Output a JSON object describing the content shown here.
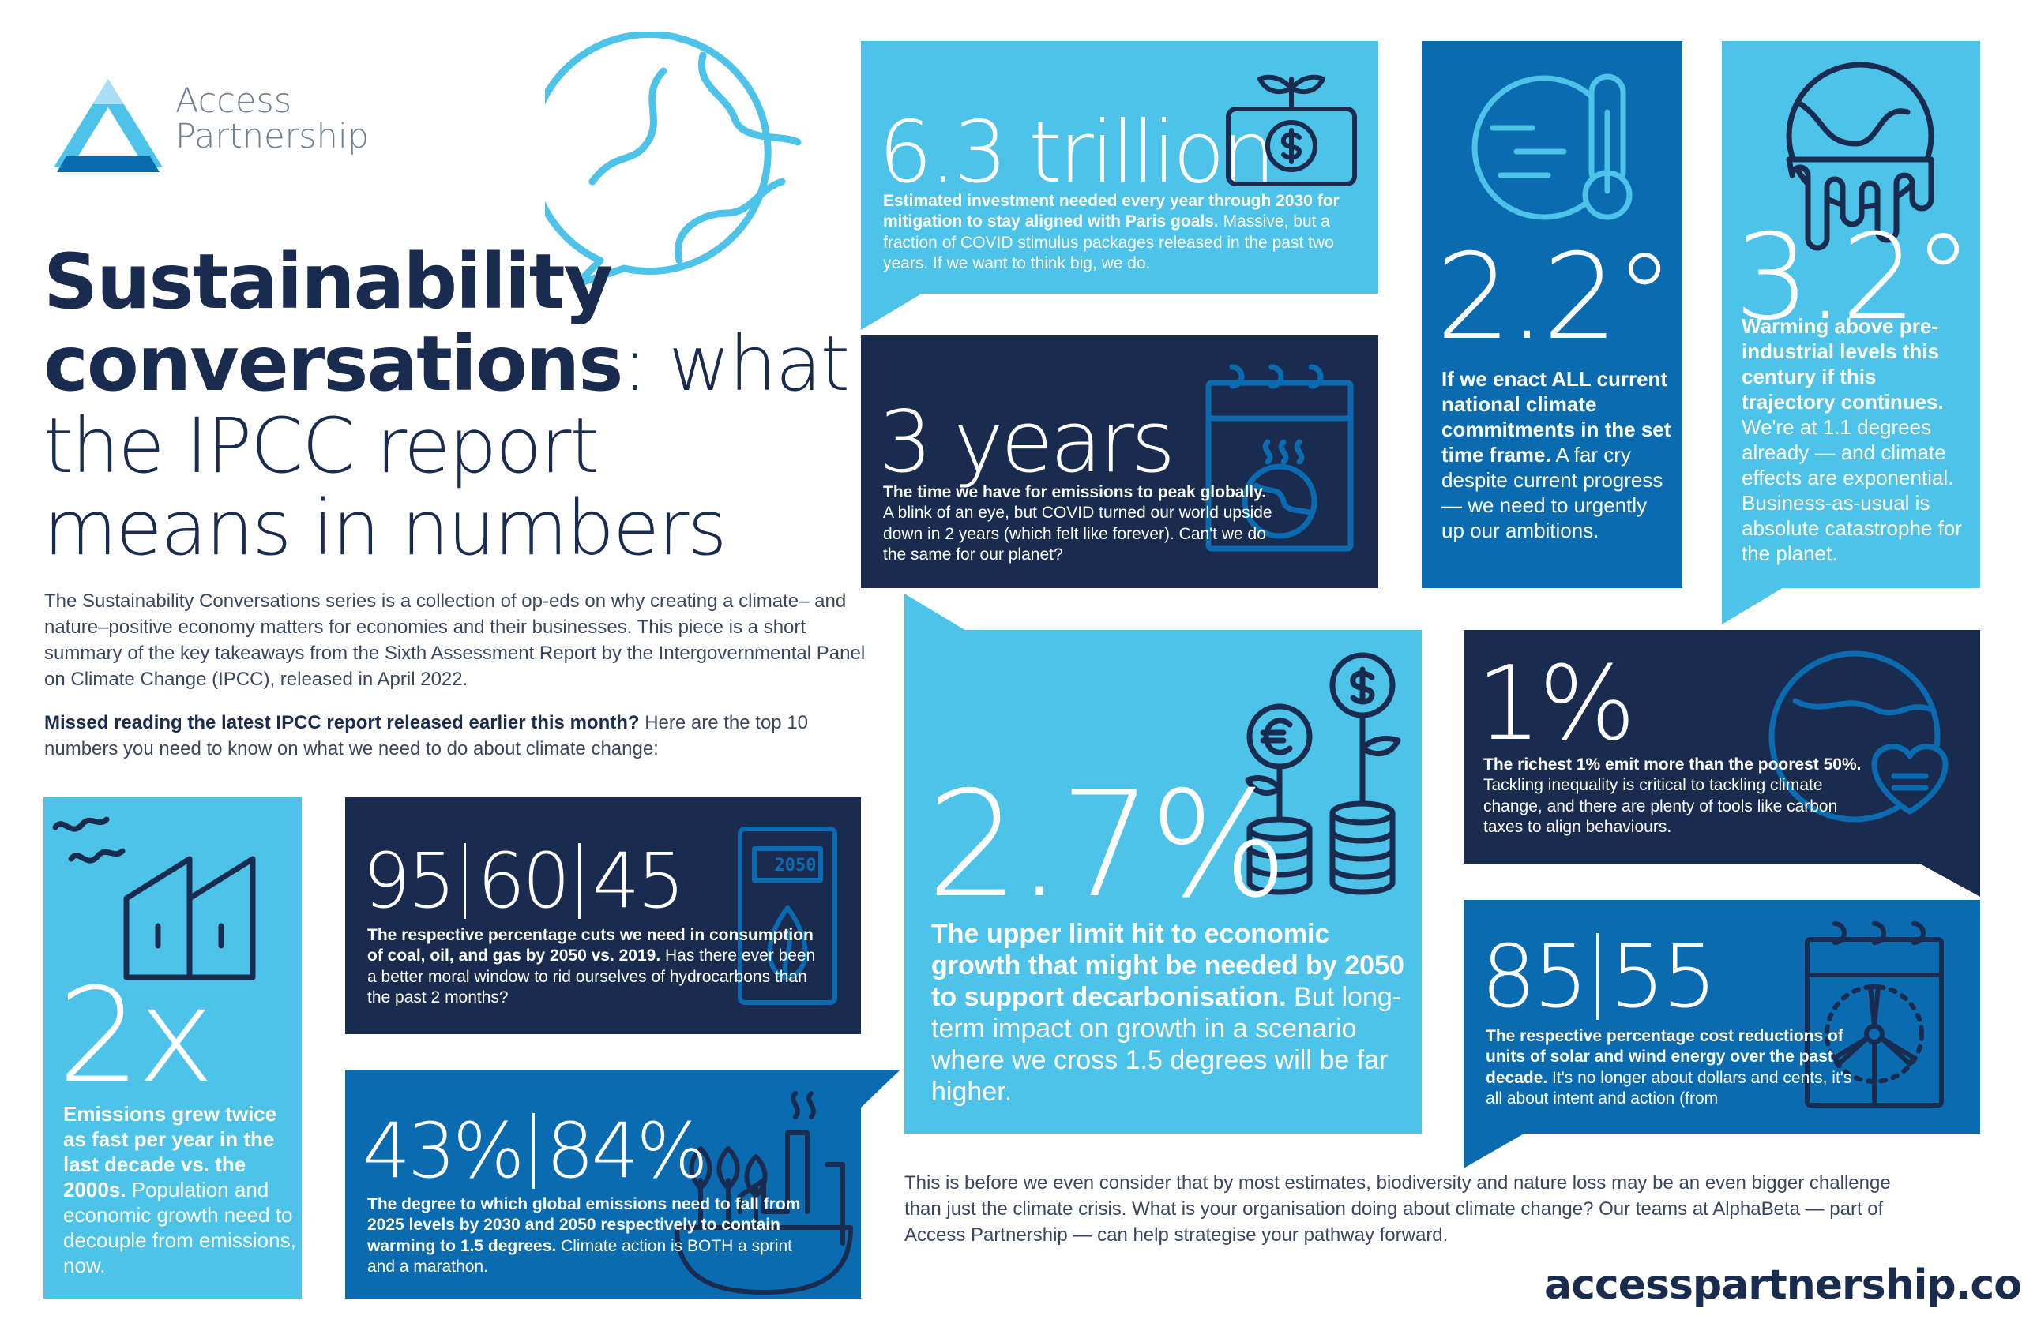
{
  "brand": {
    "name_line1": "Access",
    "name_line2": "Partnership",
    "website": "accesspartnership.com"
  },
  "headline": {
    "bold1": "Sustainability",
    "bold2": "conversations",
    "rest1": ": what",
    "rest2": "the IPCC report",
    "rest3": "means in numbers"
  },
  "intro": {
    "paragraph": "The Sustainability Conversations series is a collection of op-eds on why creating a climate– and nature–positive economy matters for economies and their businesses. This piece is a short summary of the key takeaways from the Sixth Assessment Report by the Intergovernmental Panel on Climate Change (IPCC), released in April 2022.",
    "lead_bold": "Missed reading the latest IPCC report released earlier this month?",
    "lead_rest": " Here are the top 10 numbers you need to know on what we need to do about climate change:"
  },
  "cards": {
    "trillion": {
      "figure": "6.3 trillion",
      "bold": "Estimated investment needed every year through 2030 for mitigation to stay aligned with Paris goals.",
      "text": " Massive, but a fraction of COVID stimulus packages released in the past two years. If we want to think big, we do."
    },
    "years": {
      "figure": "3 years",
      "bold": "The time we have for emissions to peak globally.",
      "text": " A blink of an eye, but COVID turned our world upside down in 2 years (which felt like forever). Can't we do the same for our planet?"
    },
    "deg22": {
      "figure": "2.2°",
      "bold": "If we enact ALL current national climate commitments in the set time frame.",
      "text": " A far cry despite current progress — we need to urgently up our ambitions."
    },
    "deg32": {
      "figure": "3.2°",
      "bold": "Warming above pre-industrial levels this century if this trajectory continues.",
      "text": " We're at 1.1 degrees already — and climate effects are exponential. Business-as-usual is absolute catastrophe for the planet."
    },
    "pct1": {
      "figure": "1%",
      "bold": "The richest 1% emit more than the poorest 50%.",
      "text": " Tackling inequality is critical to tackling climate change, and there are plenty of tools like carbon taxes to align behaviours."
    },
    "pct27": {
      "figure": "2.7%",
      "bold": "The upper limit hit to economic growth that might be needed by 2050 to support decarbonisation.",
      "text": " But long-term impact on growth in a scenario where we cross 1.5 degrees will be far higher."
    },
    "x2": {
      "figure": "2x",
      "bold": "Emissions grew twice as fast per year in the last decade vs. the 2000s.",
      "text": " Population and economic growth need to decouple from emissions, now."
    },
    "fossil": {
      "fig_a": "95",
      "fig_b": "60",
      "fig_c": "45",
      "year_label": "2050",
      "bold": "The respective percentage cuts we need in consumption of coal, oil, and gas by 2050 vs. 2019.",
      "text": " Has there ever been a better moral window to rid ourselves of hydrocarbons than the past 2 months?"
    },
    "cuts": {
      "fig_a": "43%",
      "fig_b": "84%",
      "bold": "The degree to which global emissions need to fall from 2025 levels by 2030 and 2050 respectively to contain warming to 1.5 degrees.",
      "text": " Climate action is BOTH a sprint and a marathon."
    },
    "solar": {
      "fig_a": "85",
      "fig_b": "55",
      "bold": "The respective percentage cost reductions of units of solar and wind energy over the past decade.",
      "text": " It's no longer about dollars and cents, it's all about intent and action (from"
    }
  },
  "closing": "This is before we even consider that by most estimates, biodiversity and nature loss may be an even bigger challenge than just the climate crisis. What is your organisation doing about climate change? Our teams at AlphaBeta — part of Access Partnership  — can help strategise your pathway forward.",
  "colors": {
    "light": "#4ec3e9",
    "mid": "#0a6bb0",
    "dark": "#1a2b50",
    "white": "#ffffff"
  },
  "icons": [
    "access-partnership-logo",
    "globe-speech-icon",
    "money-plant-icon",
    "calendar-globe-icon",
    "globe-thermometer-icon",
    "melting-globe-icon",
    "globe-heart-icon",
    "coin-plants-icon",
    "factory-icon",
    "fuel-2050-icon",
    "industry-plants-icon",
    "calendar-wind-turbine-icon"
  ]
}
